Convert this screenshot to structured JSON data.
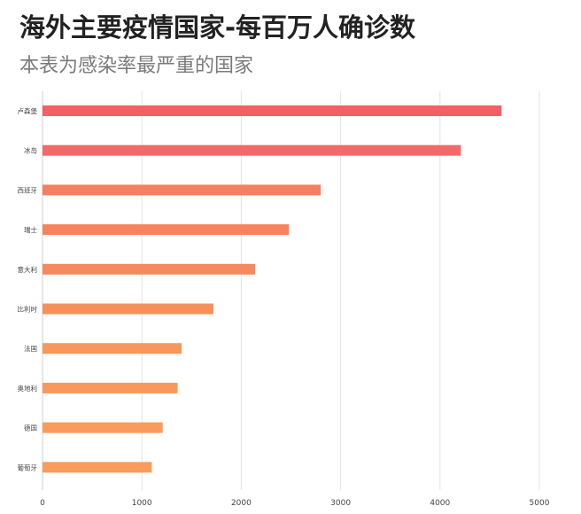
{
  "title": "海外主要疫情国家-每百万人确诊数",
  "subtitle": "本表为感染率最严重的国家",
  "chart_data": {
    "type": "bar",
    "orientation": "horizontal",
    "title": "海外主要疫情国家-每百万人确诊数",
    "subtitle": "本表为感染率最严重的国家",
    "categories": [
      "卢森堡",
      "冰岛",
      "西班牙",
      "瑞士",
      "意大利",
      "比利时",
      "法国",
      "奥地利",
      "德国",
      "葡萄牙"
    ],
    "values": [
      4620,
      4210,
      2800,
      2480,
      2140,
      1720,
      1400,
      1360,
      1210,
      1100
    ],
    "colors": [
      "#f26066",
      "#f3696a",
      "#f57f61",
      "#f5845e",
      "#f6895d",
      "#f78f5c",
      "#f9965b",
      "#f9985b",
      "#fa9a5c",
      "#fb9c5c"
    ],
    "xlim": [
      0,
      5000
    ],
    "xticks": [
      0,
      1000,
      2000,
      3000,
      4000,
      5000
    ],
    "grid": true,
    "legend": "none",
    "xlabel": "",
    "ylabel": ""
  }
}
